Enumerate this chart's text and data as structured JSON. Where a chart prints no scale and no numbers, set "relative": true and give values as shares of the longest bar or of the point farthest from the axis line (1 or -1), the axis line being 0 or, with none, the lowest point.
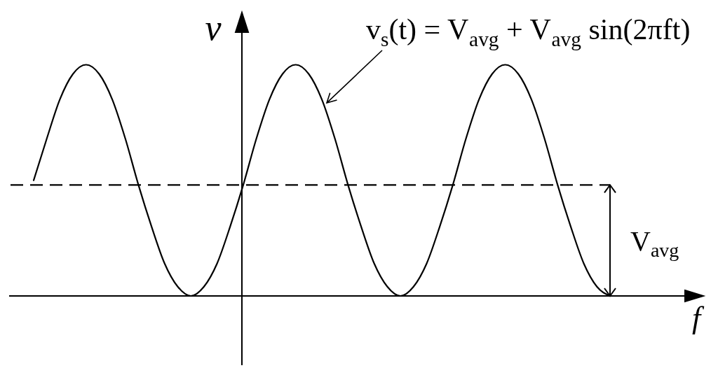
{
  "chart_data": {
    "type": "line",
    "relative": true,
    "categories": [
      null,
      null,
      null,
      null,
      null,
      null,
      null,
      null,
      null,
      null,
      null,
      null,
      null,
      null,
      null,
      null,
      null,
      null,
      null,
      null,
      null,
      null,
      null,
      null,
      null,
      null,
      null,
      null,
      null,
      null,
      null,
      null,
      null,
      null,
      null,
      null,
      null,
      null,
      null,
      null,
      null,
      null,
      null,
      null,
      null
    ],
    "series": [
      {
        "name": "v$_{s}$(t) = V$_{avg}$ + V$_{avg}$ sin(2πft)",
        "color": "#000000",
        "values": [
          0.5,
          0.68,
          0.85,
          0.96,
          1,
          0.96,
          0.85,
          0.68,
          0.48,
          0.3,
          0.14,
          0.04,
          0,
          0.04,
          0.14,
          0.3,
          0.48,
          0.68,
          0.85,
          0.96,
          1,
          0.96,
          0.85,
          0.68,
          0.48,
          0.3,
          0.14,
          0.04,
          0,
          0.04,
          0.14,
          0.3,
          0.48,
          0.68,
          0.85,
          0.96,
          1,
          0.96,
          0.85,
          0.68,
          0.48,
          0.3,
          0.14,
          0.04,
          0
        ]
      }
    ],
    "xlabel": "f",
    "ylabel": "v",
    "ref_lines": [
      {
        "axis": "y",
        "value": 0.48,
        "line_style": "dashed",
        "color": "#000000"
      }
    ],
    "annotations": [
      "V$_{avg}$"
    ]
  }
}
